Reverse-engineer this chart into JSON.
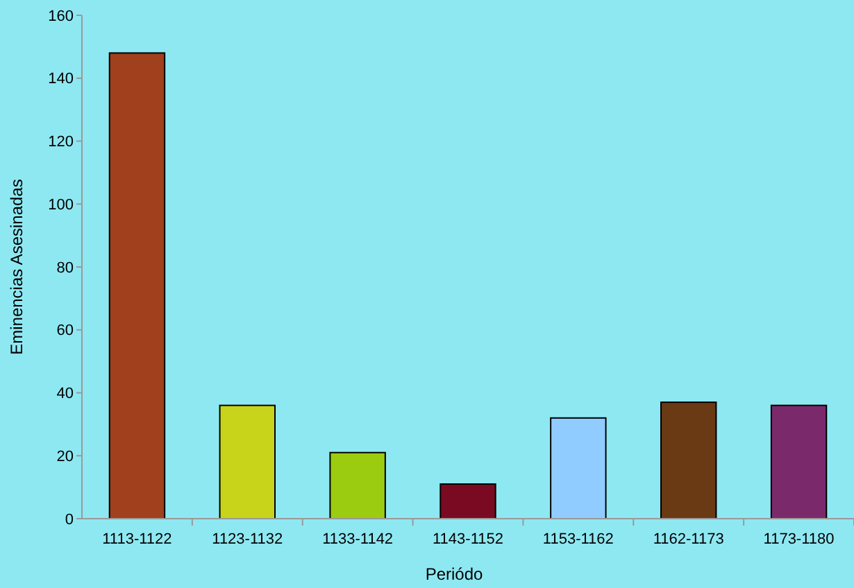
{
  "chart_data": {
    "type": "bar",
    "xlabel": "Periódo",
    "ylabel": "Eminencias Asesinadas",
    "categories": [
      "1113-1122",
      "1123-1132",
      "1133-1142",
      "1143-1152",
      "1153-1162",
      "1162-1173",
      "1173-1180"
    ],
    "values": [
      148,
      36,
      21,
      11,
      32,
      37,
      36
    ],
    "colors": [
      "#a0401c",
      "#c8d41a",
      "#9ccc10",
      "#7a0a22",
      "#90ccff",
      "#6a3a14",
      "#7a2a6a"
    ],
    "ylim": [
      0,
      160
    ],
    "yticks": [
      0,
      20,
      40,
      60,
      80,
      100,
      120,
      140,
      160
    ],
    "grid": false
  }
}
